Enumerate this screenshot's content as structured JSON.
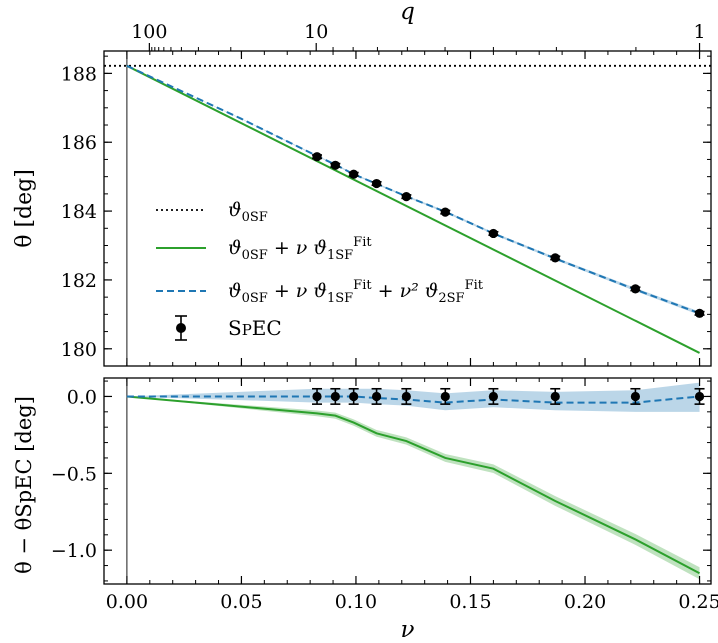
{
  "chart_data": [
    {
      "type": "line",
      "panel": "top",
      "xlabel": "ν",
      "ylabel": "θ [deg]",
      "top_axis_label": "q",
      "xlim": [
        -0.01,
        0.255
      ],
      "ylim": [
        179.5,
        188.65
      ],
      "x_ticks": [
        0.0,
        0.05,
        0.1,
        0.15,
        0.2,
        0.25
      ],
      "y_ticks": [
        180,
        182,
        184,
        186,
        188
      ],
      "y_tick_labels": [
        "180",
        "182",
        "184",
        "186",
        "188"
      ],
      "top_ticks": [
        {
          "q": 100,
          "label": "100"
        },
        {
          "q": 10,
          "label": "10"
        },
        {
          "q": 1,
          "label": "1"
        }
      ],
      "series": [
        {
          "name": "ϑ0SF",
          "legend": [
            "ϑ",
            "0SF"
          ],
          "style": "dotted",
          "color": "#000000",
          "constant": 188.22
        },
        {
          "name": "ϑ0SF + ν ϑ1SF(Fit)",
          "legend": [
            "ϑ",
            "0SF",
            " + ν ϑ",
            "1SF",
            "Fit"
          ],
          "style": "solid",
          "color": "#2ca02c",
          "x": [
            0.0,
            0.25
          ],
          "y": [
            188.22,
            179.88
          ]
        },
        {
          "name": "ϑ0SF + ν ϑ1SF(Fit) + ν² ϑ2SF(Fit)",
          "legend": [
            "ϑ",
            "0SF",
            " + ν ϑ",
            "1SF",
            "Fit",
            " + ν² ϑ",
            "2SF",
            "Fit"
          ],
          "style": "dashed",
          "color": "#1f77b4",
          "x": [
            0.0,
            0.05,
            0.083,
            0.091,
            0.099,
            0.109,
            0.122,
            0.139,
            0.16,
            0.187,
            0.222,
            0.25
          ],
          "y": [
            188.22,
            186.68,
            185.6,
            185.35,
            185.07,
            184.79,
            184.43,
            183.98,
            183.35,
            182.62,
            181.72,
            181.03
          ]
        },
        {
          "name": "SpEC",
          "legend": [
            "S",
            "P",
            "EC"
          ],
          "style": "errorbar",
          "color": "#000000",
          "x": [
            0.083,
            0.091,
            0.099,
            0.109,
            0.122,
            0.139,
            0.16,
            0.187,
            0.222,
            0.25
          ],
          "y": [
            185.58,
            185.33,
            185.07,
            184.8,
            184.42,
            183.97,
            183.35,
            182.64,
            181.74,
            181.03
          ],
          "err": [
            0.05,
            0.05,
            0.05,
            0.05,
            0.05,
            0.05,
            0.05,
            0.05,
            0.05,
            0.05
          ]
        }
      ]
    },
    {
      "type": "line",
      "panel": "bottom",
      "xlabel": "ν",
      "ylabel": "θ − θSpEC [deg]",
      "xlim": [
        -0.01,
        0.255
      ],
      "ylim": [
        -1.22,
        0.12
      ],
      "x_ticks": [
        0.0,
        0.05,
        0.1,
        0.15,
        0.2,
        0.25
      ],
      "x_tick_labels": [
        "0.00",
        "0.05",
        "0.10",
        "0.15",
        "0.20",
        "0.25"
      ],
      "y_ticks": [
        0.0,
        -0.5,
        -1.0
      ],
      "y_tick_labels": [
        "0.0",
        "−0.5",
        "−1.0"
      ],
      "series": [
        {
          "name": "ϑ0SF + ν ϑ1SF(Fit)",
          "style": "solid",
          "color": "#2ca02c",
          "x": [
            0.0,
            0.083,
            0.091,
            0.099,
            0.109,
            0.122,
            0.139,
            0.16,
            0.187,
            0.222,
            0.25
          ],
          "y": [
            0.0,
            -0.11,
            -0.125,
            -0.17,
            -0.24,
            -0.29,
            -0.4,
            -0.47,
            -0.68,
            -0.93,
            -1.15
          ],
          "band": 0.03
        },
        {
          "name": "ϑ0SF + ν ϑ1SF(Fit) + ν² ϑ2SF(Fit)",
          "style": "dashed",
          "color": "#1f77b4",
          "x": [
            0.0,
            0.083,
            0.091,
            0.099,
            0.109,
            0.122,
            0.139,
            0.16,
            0.187,
            0.222,
            0.25
          ],
          "y": [
            0.0,
            0.0,
            0.0,
            0.0,
            -0.01,
            -0.02,
            -0.04,
            -0.02,
            -0.04,
            -0.04,
            0.0
          ],
          "band_hi": [
            0.0,
            0.05,
            0.05,
            0.05,
            0.05,
            0.04,
            0.02,
            0.04,
            0.03,
            0.04,
            0.09
          ],
          "band_lo": [
            0.0,
            -0.04,
            -0.04,
            -0.04,
            -0.05,
            -0.06,
            -0.09,
            -0.07,
            -0.09,
            -0.1,
            -0.1
          ]
        },
        {
          "name": "SpEC",
          "style": "errorbar",
          "color": "#000000",
          "x": [
            0.083,
            0.091,
            0.099,
            0.109,
            0.122,
            0.139,
            0.16,
            0.187,
            0.222,
            0.25
          ],
          "y": [
            0,
            0,
            0,
            0,
            0,
            0,
            0,
            0,
            0,
            0
          ],
          "err": [
            0.05,
            0.05,
            0.05,
            0.05,
            0.05,
            0.05,
            0.05,
            0.05,
            0.05,
            0.05
          ]
        }
      ]
    }
  ]
}
